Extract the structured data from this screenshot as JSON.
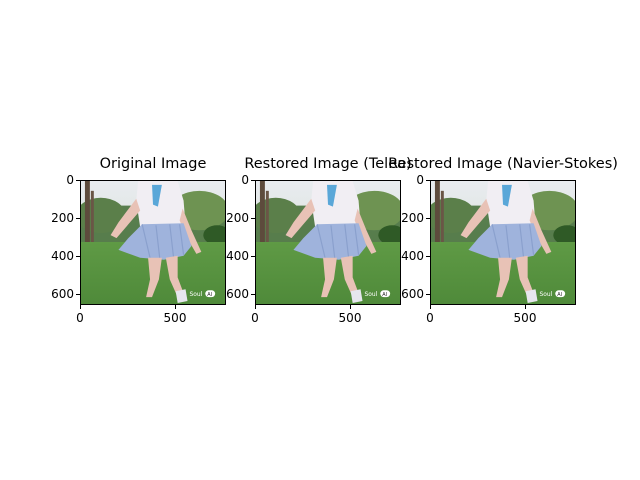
{
  "panels": [
    {
      "title": "Original Image"
    },
    {
      "title": "Restored Image (Telea)"
    },
    {
      "title": "Restored Image (Navier-Stokes)"
    }
  ],
  "axes": {
    "y_ticks": [
      "0",
      "200",
      "400",
      "600"
    ],
    "x_ticks": [
      "0",
      "500"
    ]
  },
  "image": {
    "description_colors": {
      "sky": "#e9ecf0",
      "grass": "#4f8a3a",
      "trees": "#3f6b32",
      "shirt": "#f1eef3",
      "skirt": "#9fb3dc",
      "tie": "#5aa7d8",
      "skin": "#e8c2b6"
    },
    "watermark": "Soul AI"
  }
}
